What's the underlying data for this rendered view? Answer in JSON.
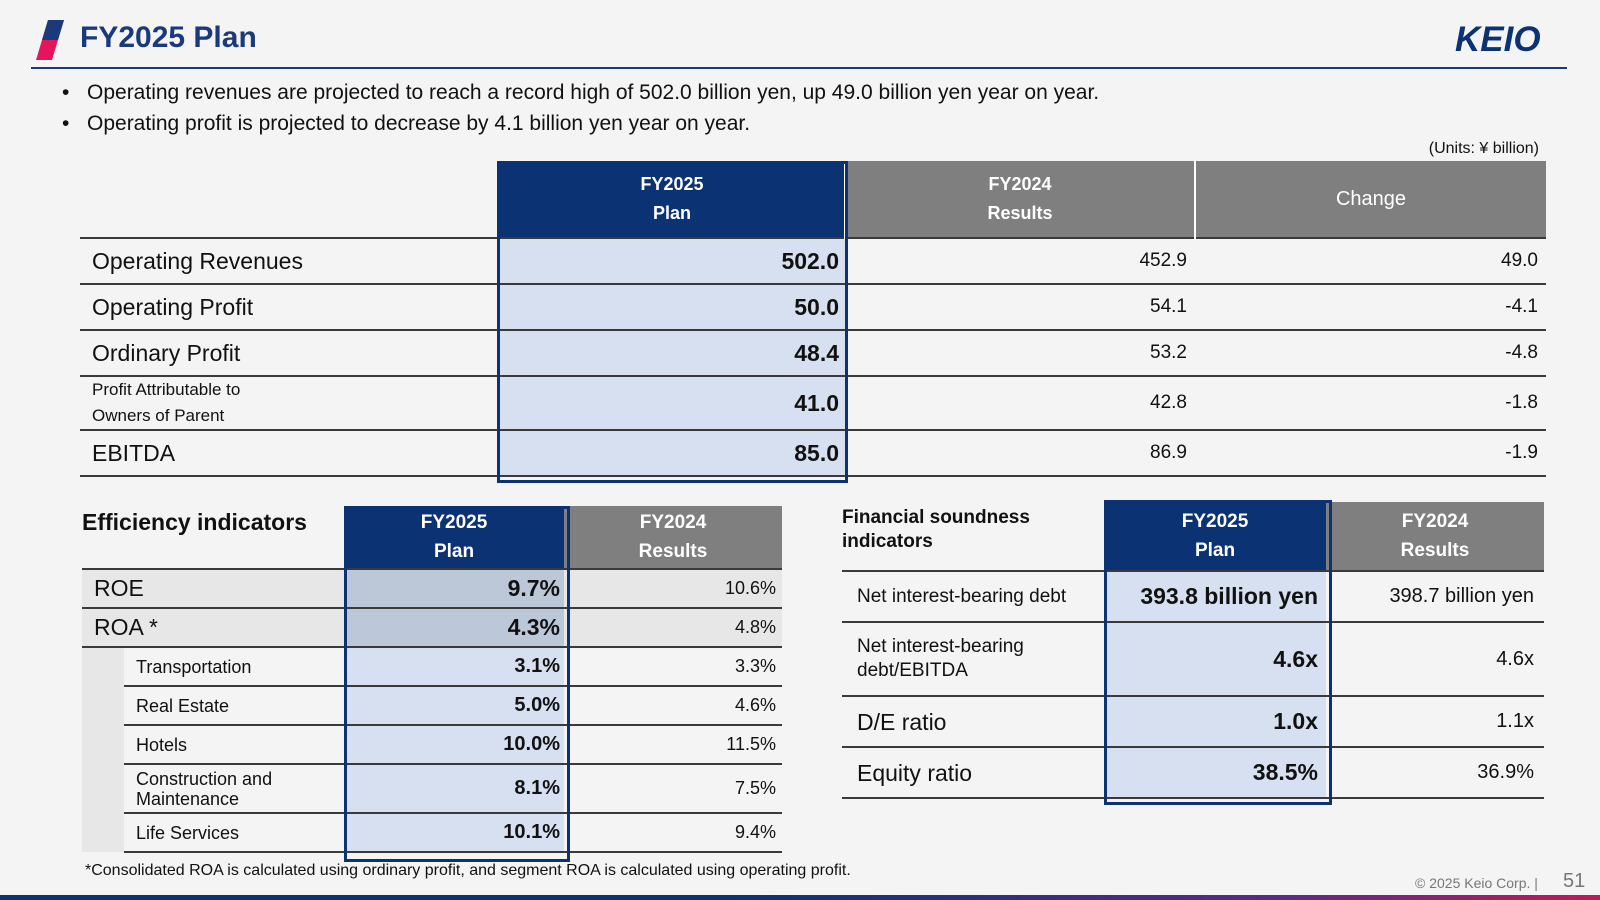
{
  "header": {
    "title": "FY2025 Plan",
    "logo_text": "KEIO"
  },
  "bullets": [
    "Operating revenues are projected to reach a record high of 502.0 billion yen, up 49.0 billion yen year on year.",
    "Operating profit is projected to decrease by 4.1 billion yen year on year."
  ],
  "units": "(Units: ¥ billion)",
  "main_table": {
    "headers": {
      "plan_l1": "FY2025",
      "plan_l2": "Plan",
      "results_l1": "FY2024",
      "results_l2": "Results",
      "change": "Change"
    },
    "rows": [
      {
        "label": "Operating Revenues",
        "plan": "502.0",
        "results": "452.9",
        "change": "49.0"
      },
      {
        "label": "Operating Profit",
        "plan": "50.0",
        "results": "54.1",
        "change": "-4.1"
      },
      {
        "label": "Ordinary Profit",
        "plan": "48.4",
        "results": "53.2",
        "change": "-4.8"
      },
      {
        "label_l1": "Profit Attributable to",
        "label_l2": "Owners of Parent",
        "plan": "41.0",
        "results": "42.8",
        "change": "-1.8"
      },
      {
        "label": "EBITDA",
        "plan": "85.0",
        "results": "86.9",
        "change": "-1.9"
      }
    ]
  },
  "efficiency": {
    "title": "Efficiency indicators",
    "headers": {
      "plan_l1": "FY2025",
      "plan_l2": "Plan",
      "results_l1": "FY2024",
      "results_l2": "Results"
    },
    "rows": [
      {
        "label": "ROE",
        "plan": "9.7%",
        "results": "10.6%"
      },
      {
        "label": "ROA *",
        "plan": "4.3%",
        "results": "4.8%"
      },
      {
        "label": "Transportation",
        "plan": "3.1%",
        "results": "3.3%"
      },
      {
        "label": "Real Estate",
        "plan": "5.0%",
        "results": "4.6%"
      },
      {
        "label": "Hotels",
        "plan": "10.0%",
        "results": "11.5%"
      },
      {
        "label_l1": "Construction and",
        "label_l2": "Maintenance",
        "plan": "8.1%",
        "results": "7.5%"
      },
      {
        "label": "Life Services",
        "plan": "10.1%",
        "results": "9.4%"
      }
    ],
    "footnote": "*Consolidated ROA is calculated using ordinary profit, and segment ROA is calculated using operating profit."
  },
  "soundness": {
    "title_l1": "Financial soundness",
    "title_l2": "indicators",
    "headers": {
      "plan_l1": "FY2025",
      "plan_l2": "Plan",
      "results_l1": "FY2024",
      "results_l2": "Results"
    },
    "rows": [
      {
        "label": "Net interest-bearing debt",
        "plan": "393.8 billion yen",
        "results": "398.7 billion yen"
      },
      {
        "label_l1": "Net interest-bearing",
        "label_l2": "debt/EBITDA",
        "plan": "4.6x",
        "results": "4.6x"
      },
      {
        "label": "D/E ratio",
        "plan": "1.0x",
        "results": "1.1x"
      },
      {
        "label": "Equity ratio",
        "plan": "38.5%",
        "results": "36.9%"
      }
    ]
  },
  "footer": {
    "copyright": "© 2025 Keio Corp.  |",
    "page_number": "51"
  },
  "colors": {
    "navy": "#0b3272",
    "title_blue": "#1a3a7c",
    "gray_header": "#7f7f7f",
    "plan_fill": "#d6e0f0",
    "accent_pink": "#e6155a"
  }
}
